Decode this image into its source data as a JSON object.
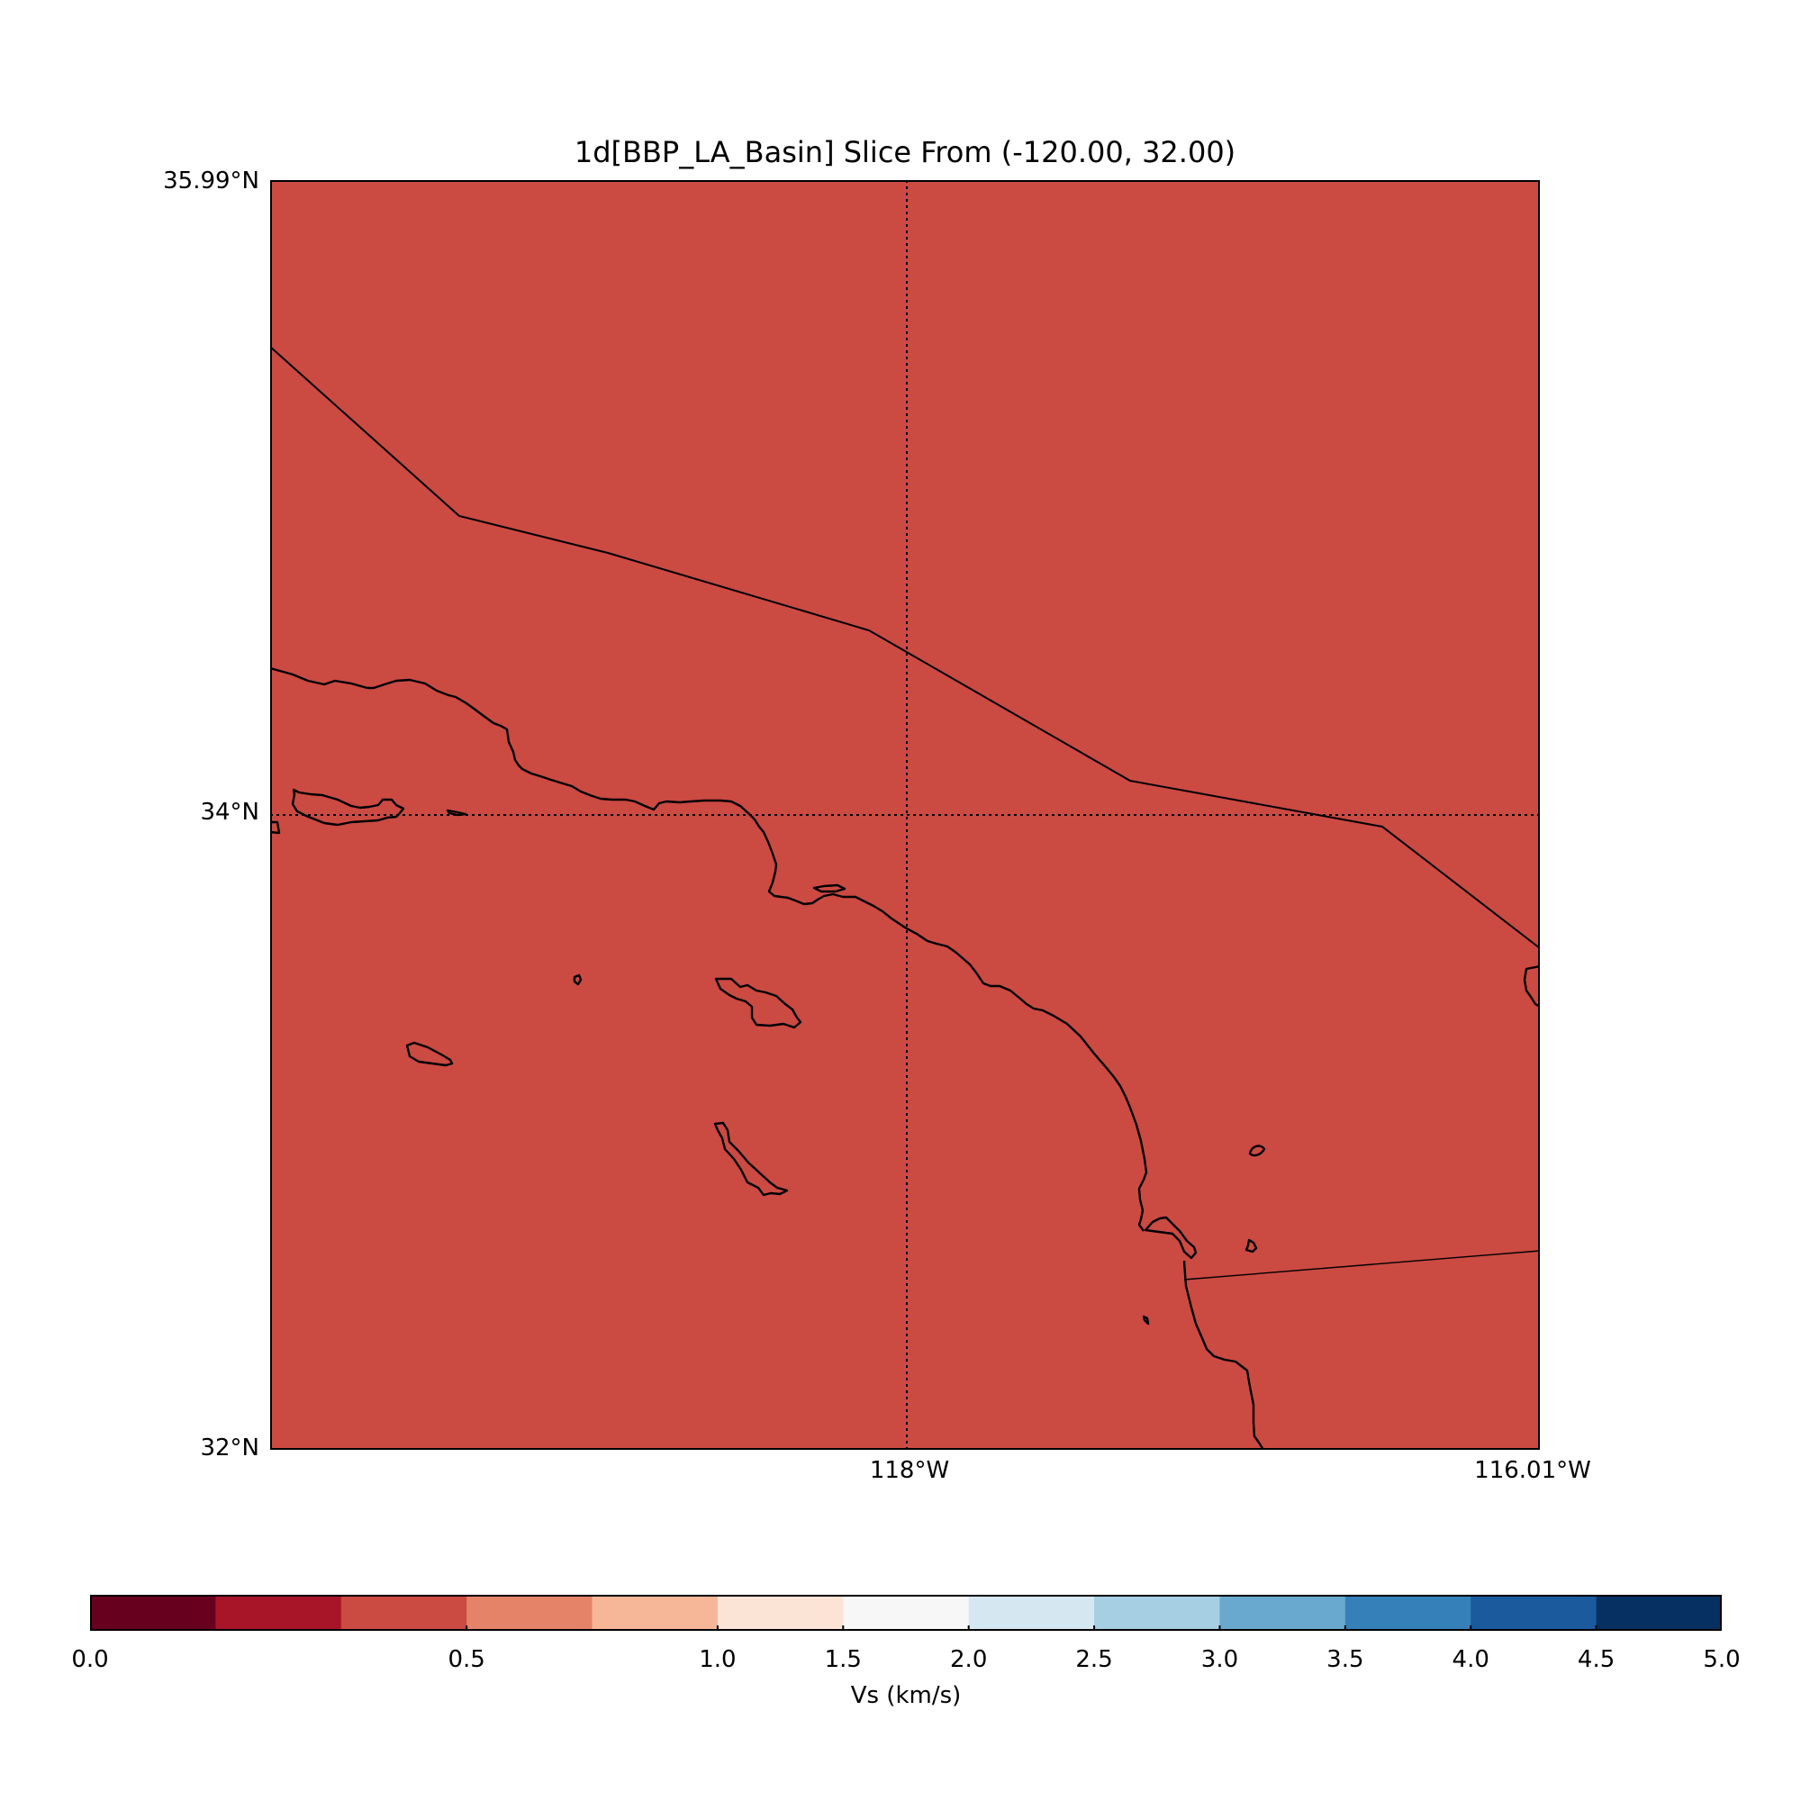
{
  "title": "1d[BBP_LA_Basin] Slice From (-120.00, 32.00)",
  "map": {
    "fill_color": "#cb4a42",
    "lat_labels": [
      "35.99°N",
      "34°N",
      "32°N"
    ],
    "lon_labels": [
      "118°W",
      "116.01°W"
    ],
    "lon_range": [
      -120.0,
      -116.01
    ],
    "lat_range": [
      32.0,
      35.99
    ],
    "gridlines": {
      "lon": [
        -118.0
      ],
      "lat": [
        34.0
      ],
      "style": "dotted"
    }
  },
  "chart_data": {
    "type": "heatmap",
    "title": "1d[BBP_LA_Basin] Slice From (-120.00, 32.00)",
    "xlim": [
      -120.0,
      -116.01
    ],
    "ylim": [
      32.0,
      35.99
    ],
    "field_value_kms": 0.5,
    "colorbar": {
      "label": "Vs (km/s)",
      "tick_labels": [
        "0.0",
        "0.5",
        "1.0",
        "1.5",
        "2.0",
        "2.5",
        "3.0",
        "3.5",
        "4.0",
        "4.5",
        "5.0"
      ],
      "colors": [
        "#67001f",
        "#a81529",
        "#cb4a42",
        "#e58368",
        "#f6b799",
        "#fbe3d6",
        "#f7f7f7",
        "#d5e7f0",
        "#a7cfe4",
        "#69a9cf",
        "#3580b9",
        "#1b5a9c",
        "#053061"
      ]
    }
  }
}
